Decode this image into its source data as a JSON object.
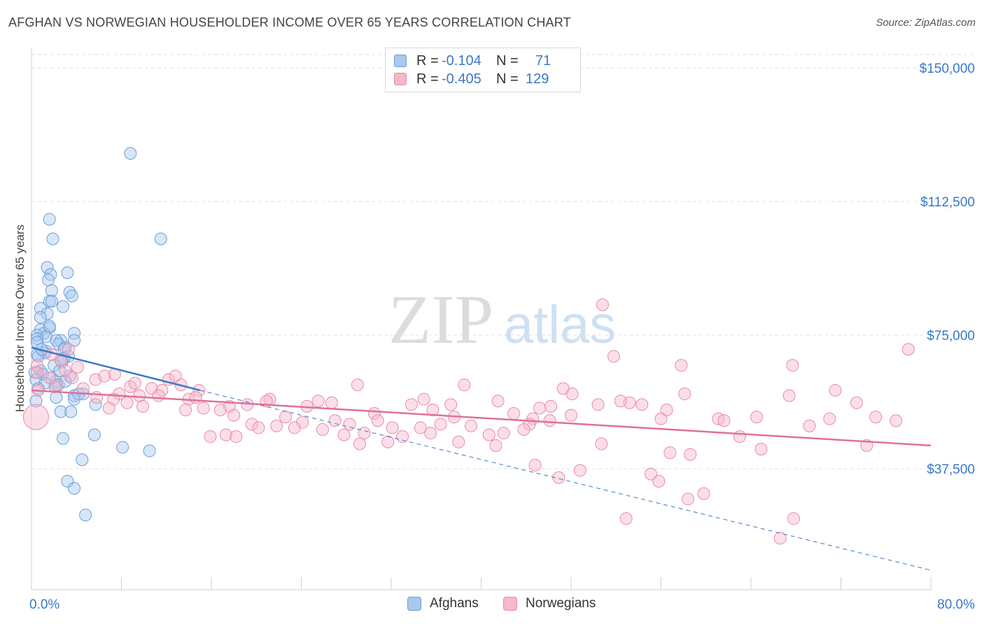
{
  "header": {
    "title": "AFGHAN VS NORWEGIAN HOUSEHOLDER INCOME OVER 65 YEARS CORRELATION CHART",
    "source": "Source: ZipAtlas.com"
  },
  "legend_top": {
    "rows": [
      {
        "r_label": "R =",
        "r_value": "-0.104",
        "n_label": "N =",
        "n_value": "71"
      },
      {
        "r_label": "R =",
        "r_value": "-0.405",
        "n_label": "N =",
        "n_value": "129"
      }
    ]
  },
  "legend_bottom": {
    "afghans": "Afghans",
    "norwegians": "Norwegians"
  },
  "watermark": {
    "zip": "ZIP",
    "atlas": "atlas"
  },
  "colors": {
    "afghan_fill": "#a9c8ee",
    "afghan_stroke": "#6a9fd8",
    "afghan_line": "#3a78c9",
    "norwegian_fill": "#f6b8cb",
    "norwegian_stroke": "#e98aa9",
    "norwegian_line": "#e0709a",
    "tick_label": "#3a78c9",
    "grid": "#e2e2e2"
  },
  "chart_data": {
    "type": "scatter",
    "title": "AFGHAN VS NORWEGIAN HOUSEHOLDER INCOME OVER 65 YEARS CORRELATION CHART",
    "xlabel": "",
    "ylabel": "Householder Income Over 65 years",
    "xlim": [
      0,
      80
    ],
    "ylim": [
      0,
      155000
    ],
    "x_tick_labels": [
      "0.0%",
      "80.0%"
    ],
    "y_ticks": [
      37500,
      75000,
      112500,
      150000
    ],
    "y_tick_labels": [
      "$37,500",
      "$75,000",
      "$112,500",
      "$150,000"
    ],
    "series": [
      {
        "name": "Afghans",
        "r": -0.104,
        "n": 71,
        "trend": {
          "x": [
            0,
            15
          ],
          "y": [
            71500,
            59500
          ]
        },
        "trend_extension": {
          "x": [
            15,
            80
          ],
          "y": [
            59500,
            9000
          ]
        },
        "points": [
          [
            8.8,
            126000
          ],
          [
            11.5,
            102000
          ],
          [
            1.6,
            107500
          ],
          [
            1.9,
            102000
          ],
          [
            1.4,
            94000
          ],
          [
            3.2,
            92500
          ],
          [
            1.7,
            92000
          ],
          [
            1.5,
            90500
          ],
          [
            1.8,
            87500
          ],
          [
            3.4,
            87000
          ],
          [
            3.6,
            86000
          ],
          [
            1.6,
            84500
          ],
          [
            1.8,
            84500
          ],
          [
            2.8,
            83000
          ],
          [
            0.8,
            82500
          ],
          [
            1.4,
            81000
          ],
          [
            0.8,
            80000
          ],
          [
            1.6,
            77000
          ],
          [
            0.8,
            76500
          ],
          [
            1.1,
            75500
          ],
          [
            3.8,
            75500
          ],
          [
            0.5,
            75000
          ],
          [
            1.3,
            74500
          ],
          [
            0.5,
            74000
          ],
          [
            2.6,
            73500
          ],
          [
            3.8,
            73500
          ],
          [
            2.2,
            73500
          ],
          [
            2.4,
            72500
          ],
          [
            3.0,
            71500
          ],
          [
            2.9,
            71000
          ],
          [
            1.3,
            70500
          ],
          [
            1.2,
            70000
          ],
          [
            0.5,
            69500
          ],
          [
            0.6,
            69000
          ],
          [
            3.3,
            69000
          ],
          [
            2.9,
            68500
          ],
          [
            2.7,
            67500
          ],
          [
            2.0,
            66500
          ],
          [
            0.8,
            65000
          ],
          [
            0.3,
            64500
          ],
          [
            1.0,
            64000
          ],
          [
            3.4,
            63500
          ],
          [
            1.8,
            63000
          ],
          [
            0.4,
            62500
          ],
          [
            2.2,
            62000
          ],
          [
            1.2,
            61500
          ],
          [
            2.4,
            61000
          ],
          [
            2.1,
            60500
          ],
          [
            4.6,
            58500
          ],
          [
            3.8,
            58000
          ],
          [
            2.2,
            57500
          ],
          [
            3.8,
            57000
          ],
          [
            0.4,
            56500
          ],
          [
            5.7,
            55500
          ],
          [
            2.6,
            53500
          ],
          [
            3.5,
            53500
          ],
          [
            5.6,
            47000
          ],
          [
            2.8,
            46000
          ],
          [
            8.1,
            43500
          ],
          [
            10.5,
            42500
          ],
          [
            4.5,
            40000
          ],
          [
            3.2,
            34000
          ],
          [
            3.8,
            32000
          ],
          [
            4.8,
            24500
          ],
          [
            0.5,
            73000
          ],
          [
            2.5,
            65000
          ],
          [
            0.9,
            71000
          ],
          [
            1.6,
            77500
          ],
          [
            4.2,
            58500
          ],
          [
            3.0,
            62000
          ],
          [
            0.6,
            60000
          ]
        ]
      },
      {
        "name": "Norwegians",
        "r": -0.405,
        "n": 129,
        "trend": {
          "x": [
            0,
            80
          ],
          "y": [
            59500,
            44000
          ]
        },
        "points": [
          [
            50.8,
            83500
          ],
          [
            51.8,
            69000
          ],
          [
            78.0,
            71000
          ],
          [
            57.8,
            66500
          ],
          [
            67.7,
            66500
          ],
          [
            29.0,
            61000
          ],
          [
            38.5,
            61000
          ],
          [
            47.3,
            60000
          ],
          [
            48.1,
            58500
          ],
          [
            53.2,
            56000
          ],
          [
            58.1,
            58500
          ],
          [
            67.4,
            58000
          ],
          [
            71.5,
            59500
          ],
          [
            73.4,
            56000
          ],
          [
            34.9,
            57000
          ],
          [
            37.3,
            55500
          ],
          [
            41.5,
            56500
          ],
          [
            46.2,
            55000
          ],
          [
            52.4,
            56500
          ],
          [
            54.3,
            55500
          ],
          [
            45.2,
            54500
          ],
          [
            56.5,
            54000
          ],
          [
            33.8,
            55500
          ],
          [
            35.7,
            54000
          ],
          [
            21.2,
            57000
          ],
          [
            25.5,
            56500
          ],
          [
            26.7,
            56000
          ],
          [
            24.5,
            55000
          ],
          [
            20.9,
            56500
          ],
          [
            19.2,
            55500
          ],
          [
            17.6,
            55000
          ],
          [
            16.8,
            54000
          ],
          [
            15.3,
            54500
          ],
          [
            30.5,
            53000
          ],
          [
            37.6,
            52000
          ],
          [
            42.9,
            53000
          ],
          [
            44.6,
            51500
          ],
          [
            46.1,
            51000
          ],
          [
            44.3,
            50000
          ],
          [
            48.0,
            52500
          ],
          [
            50.4,
            55500
          ],
          [
            56.0,
            51500
          ],
          [
            61.1,
            51500
          ],
          [
            64.5,
            52000
          ],
          [
            71.0,
            51500
          ],
          [
            30.8,
            51000
          ],
          [
            32.1,
            49000
          ],
          [
            34.6,
            49000
          ],
          [
            35.5,
            47500
          ],
          [
            36.4,
            50000
          ],
          [
            39.1,
            49500
          ],
          [
            40.7,
            47000
          ],
          [
            42.0,
            47500
          ],
          [
            43.8,
            48500
          ],
          [
            22.6,
            52000
          ],
          [
            24.1,
            50500
          ],
          [
            25.9,
            48500
          ],
          [
            27.0,
            51000
          ],
          [
            28.3,
            50000
          ],
          [
            29.6,
            47500
          ],
          [
            31.7,
            45000
          ],
          [
            18.0,
            52500
          ],
          [
            19.6,
            50000
          ],
          [
            20.2,
            49000
          ],
          [
            21.8,
            49500
          ],
          [
            23.4,
            49000
          ],
          [
            17.3,
            47000
          ],
          [
            18.2,
            46500
          ],
          [
            15.9,
            46500
          ],
          [
            27.8,
            47000
          ],
          [
            29.2,
            44500
          ],
          [
            33.0,
            46500
          ],
          [
            38.0,
            45000
          ],
          [
            41.3,
            44000
          ],
          [
            50.7,
            44500
          ],
          [
            56.8,
            42000
          ],
          [
            58.6,
            41500
          ],
          [
            63.0,
            46500
          ],
          [
            64.9,
            43000
          ],
          [
            61.6,
            51000
          ],
          [
            69.2,
            49500
          ],
          [
            75.1,
            52000
          ],
          [
            76.9,
            51000
          ],
          [
            74.3,
            44000
          ],
          [
            4.6,
            60000
          ],
          [
            5.7,
            62500
          ],
          [
            6.5,
            63500
          ],
          [
            7.4,
            64000
          ],
          [
            7.8,
            58500
          ],
          [
            8.8,
            60500
          ],
          [
            9.6,
            58000
          ],
          [
            9.9,
            55000
          ],
          [
            10.7,
            60000
          ],
          [
            11.6,
            59500
          ],
          [
            12.2,
            62500
          ],
          [
            12.8,
            63500
          ],
          [
            13.3,
            61000
          ],
          [
            14.0,
            57000
          ],
          [
            14.9,
            59500
          ],
          [
            5.8,
            57500
          ],
          [
            3.0,
            65000
          ],
          [
            1.8,
            69500
          ],
          [
            0.5,
            66500
          ],
          [
            2.2,
            61000
          ],
          [
            0.5,
            64500
          ],
          [
            0.6,
            59500
          ],
          [
            1.6,
            63000
          ],
          [
            3.6,
            63000
          ],
          [
            11.3,
            58000
          ],
          [
            8.5,
            56000
          ],
          [
            7.3,
            57000
          ],
          [
            14.6,
            57500
          ],
          [
            13.7,
            54000
          ],
          [
            6.9,
            54500
          ],
          [
            44.8,
            38500
          ],
          [
            46.9,
            35000
          ],
          [
            48.8,
            37000
          ],
          [
            55.8,
            34000
          ],
          [
            55.1,
            36000
          ],
          [
            58.4,
            29000
          ],
          [
            59.8,
            30500
          ],
          [
            52.9,
            23500
          ],
          [
            67.8,
            23500
          ],
          [
            66.6,
            18000
          ],
          [
            3.3,
            71000
          ],
          [
            0.4,
            52000
          ],
          [
            2.6,
            68000
          ],
          [
            4.1,
            66000
          ],
          [
            9.2,
            61500
          ]
        ]
      }
    ]
  }
}
